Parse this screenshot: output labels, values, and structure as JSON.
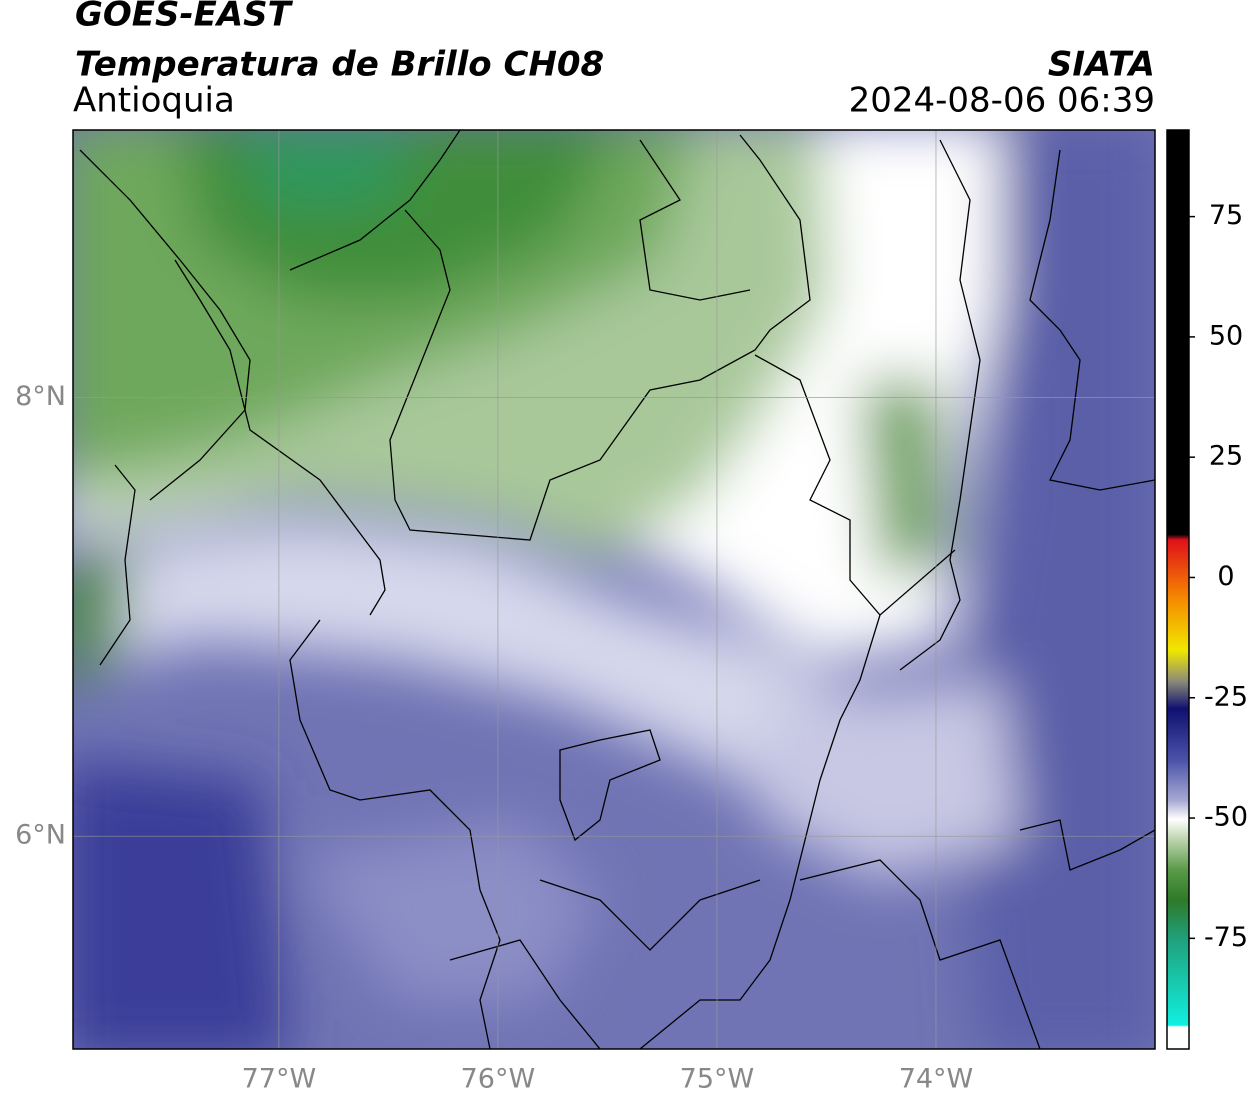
{
  "header": {
    "title": "GOES-EAST",
    "subtitle": "Temperatura de Brillo CH08",
    "region": "Antioquia",
    "source": "SIATA",
    "timestamp": "2024-08-06 06:39"
  },
  "map": {
    "xlim": [
      -77.94,
      -73.0
    ],
    "ylim": [
      5.03,
      9.22
    ],
    "xticks": [
      {
        "value": -77,
        "label": "77°W"
      },
      {
        "value": -76,
        "label": "76°W"
      },
      {
        "value": -75,
        "label": "75°W"
      },
      {
        "value": -74,
        "label": "74°W"
      }
    ],
    "yticks": [
      {
        "value": 8,
        "label": "8°N"
      },
      {
        "value": 6,
        "label": "6°N"
      }
    ],
    "grid": true
  },
  "colorbar": {
    "lim": [
      -98,
      93
    ],
    "ticks": [
      75,
      50,
      25,
      0,
      -25,
      -50,
      -75
    ]
  }
}
